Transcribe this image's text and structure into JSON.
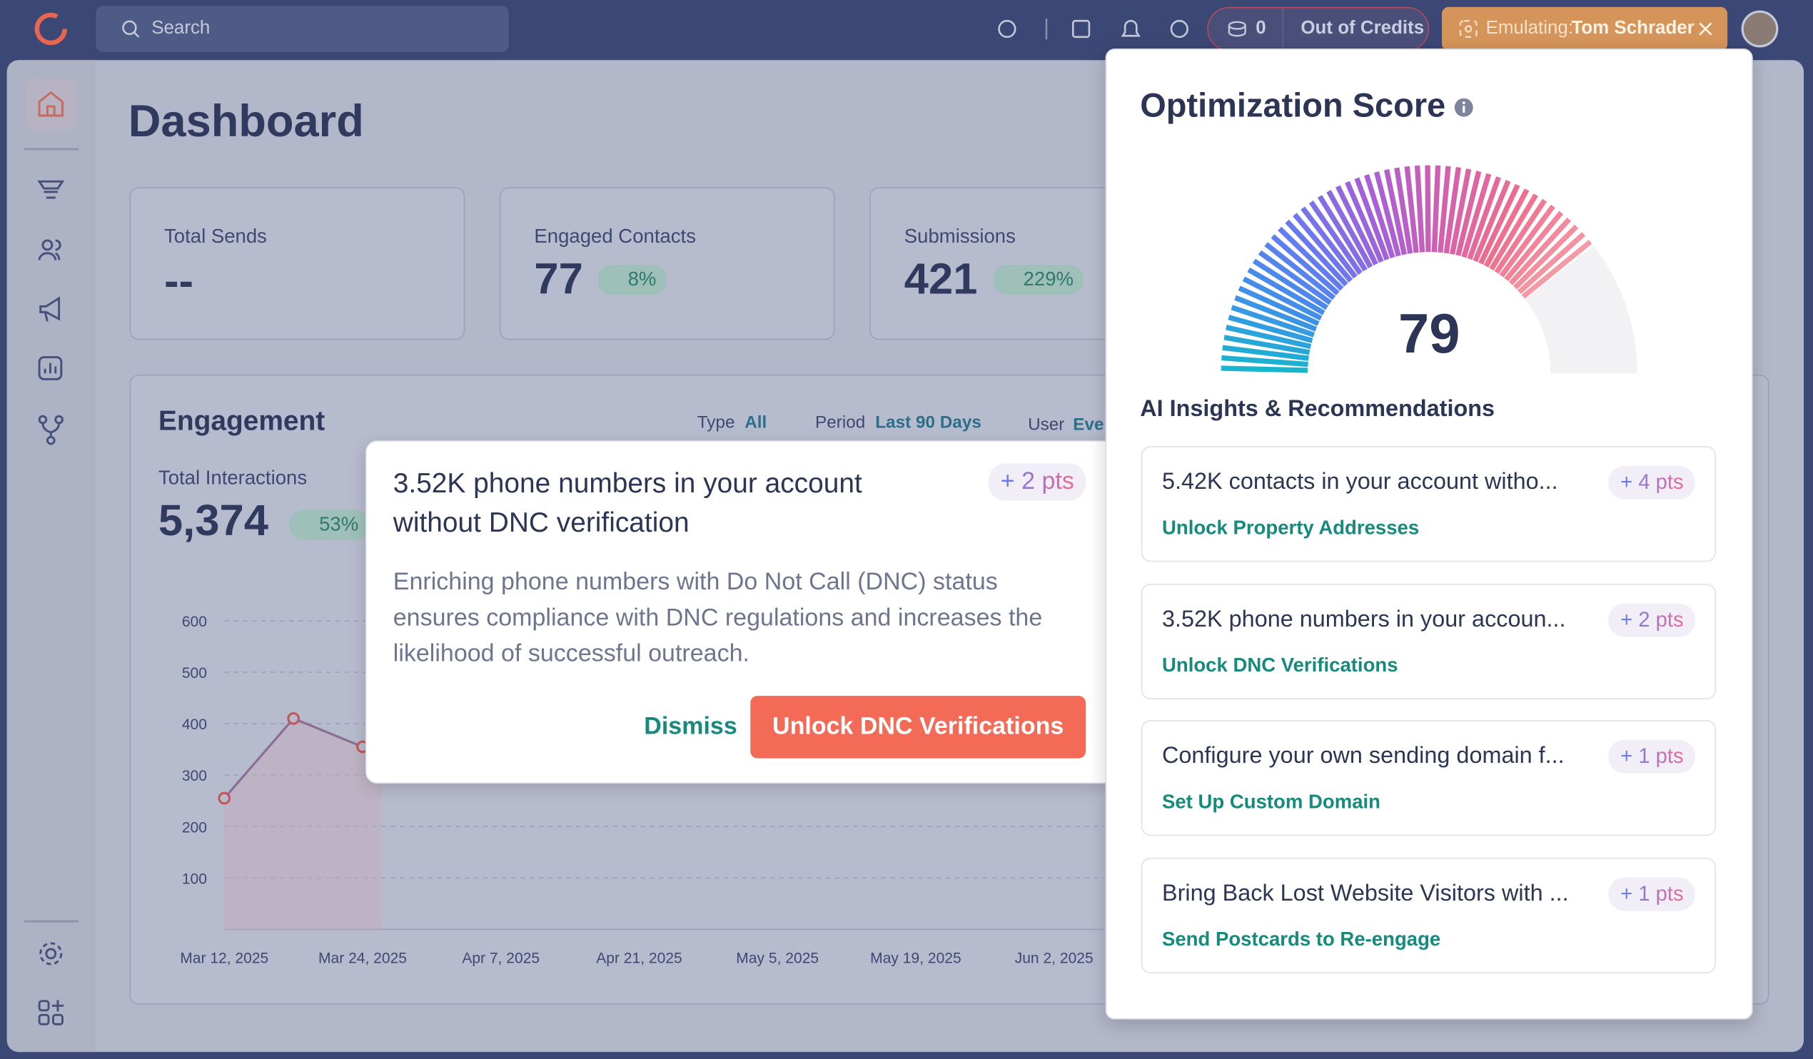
{
  "topbar": {
    "search_placeholder": "Search",
    "credits_count": "0",
    "credits_status": "Out of Credits",
    "emulating_label": "Emulating:",
    "emulating_user": "Tom Schrader"
  },
  "page_title": "Dashboard",
  "stats": [
    {
      "label": "Total Sends",
      "value": "--"
    },
    {
      "label": "Engaged Contacts",
      "value": "77",
      "change": "8%"
    },
    {
      "label": "Submissions",
      "value": "421",
      "change": "229%"
    }
  ],
  "engagement": {
    "title": "Engagement",
    "filters": [
      {
        "label": "Type",
        "value": "All"
      },
      {
        "label": "Period",
        "value": "Last 90 Days"
      },
      {
        "label": "User",
        "value": "Eve"
      }
    ],
    "total_label": "Total Interactions",
    "total_value": "5,374",
    "total_change": "53%",
    "chart": {
      "yticks": [
        100,
        200,
        300,
        400,
        500,
        600
      ],
      "x_labels": [
        "Mar 12, 2025",
        "Mar 24, 2025",
        "Apr 7, 2025",
        "Apr 21, 2025",
        "May 5, 2025",
        "May 19, 2025",
        "Jun 2, 2025"
      ],
      "values": [
        255,
        410,
        355
      ]
    }
  },
  "popup": {
    "title": "3.52K phone numbers in your account without DNC verification",
    "points": "+ 2 pts",
    "body": "Enriching phone numbers with Do Not Call (DNC) status ensures compliance with DNC regulations and increases the likelihood of successful outreach.",
    "dismiss": "Dismiss",
    "action": "Unlock DNC Verifications"
  },
  "optimization": {
    "title": "Optimization Score",
    "score": 79,
    "insights_title": "AI Insights & Recommendations",
    "items": [
      {
        "text": "5.42K contacts in your account witho...",
        "points": "+ 4 pts",
        "action": "Unlock Property Addresses"
      },
      {
        "text": "3.52K phone numbers in your accoun...",
        "points": "+ 2 pts",
        "action": "Unlock DNC Verifications"
      },
      {
        "text": "Configure your own sending domain f...",
        "points": "+ 1 pts",
        "action": "Set Up Custom Domain"
      },
      {
        "text": "Bring Back Lost Website Visitors with ...",
        "points": "+ 1 pts",
        "action": "Send Postcards to Re-engage"
      }
    ]
  }
}
